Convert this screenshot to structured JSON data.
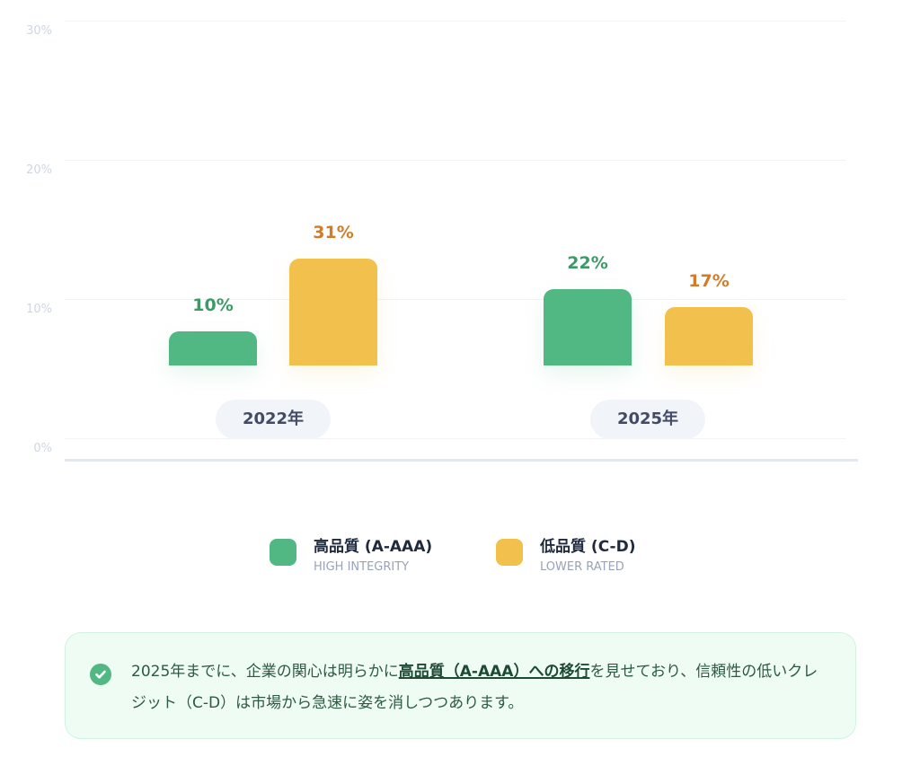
{
  "chart_data": {
    "type": "bar",
    "categories": [
      "2022年",
      "2025年"
    ],
    "series": [
      {
        "name": "高品質 (A-AAA)",
        "subtitle": "HIGH INTEGRITY",
        "color": "#52b883",
        "label_color": "#3d9a68",
        "values": [
          10,
          22
        ],
        "labels": [
          "10%",
          "22%"
        ]
      },
      {
        "name": "低品質 (C-D)",
        "subtitle": "LOWER RATED",
        "color": "#f2c04c",
        "label_color": "#d07c2c",
        "values": [
          31,
          17
        ],
        "labels": [
          "31%",
          "17%"
        ]
      }
    ],
    "yticks": [
      "0%",
      "10%",
      "20%",
      "30%"
    ],
    "ylim": [
      0,
      30
    ],
    "grid": true,
    "legend": "bottom-center"
  },
  "callout": {
    "icon": "check-circle-icon",
    "text_before": "2025年までに、企業の関心は明らかに",
    "text_emphasis": "高品質（A-AAA）への移行",
    "text_after": "を見せており、信頼性の低いクレジット（C-D）は市場から急速に姿を消しつつあります。"
  }
}
